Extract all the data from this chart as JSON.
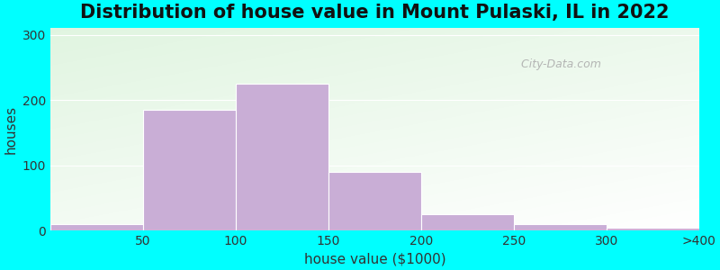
{
  "title": "Distribution of house value in Mount Pulaski, IL in 2022",
  "xlabel": "house value ($1000)",
  "ylabel": "houses",
  "bar_heights": [
    10,
    185,
    225,
    90,
    25,
    10,
    5
  ],
  "bar_color": "#C9AED6",
  "bar_edgecolor": "#ffffff",
  "xtick_labels": [
    "50",
    "100",
    "150",
    "200",
    "250",
    "300",
    ">400"
  ],
  "yticks": [
    0,
    100,
    200,
    300
  ],
  "ylim": [
    0,
    310
  ],
  "outer_bg": "#00FFFF",
  "title_fontsize": 15,
  "axis_label_fontsize": 11,
  "tick_fontsize": 10,
  "watermark_text": " City-Data.com"
}
